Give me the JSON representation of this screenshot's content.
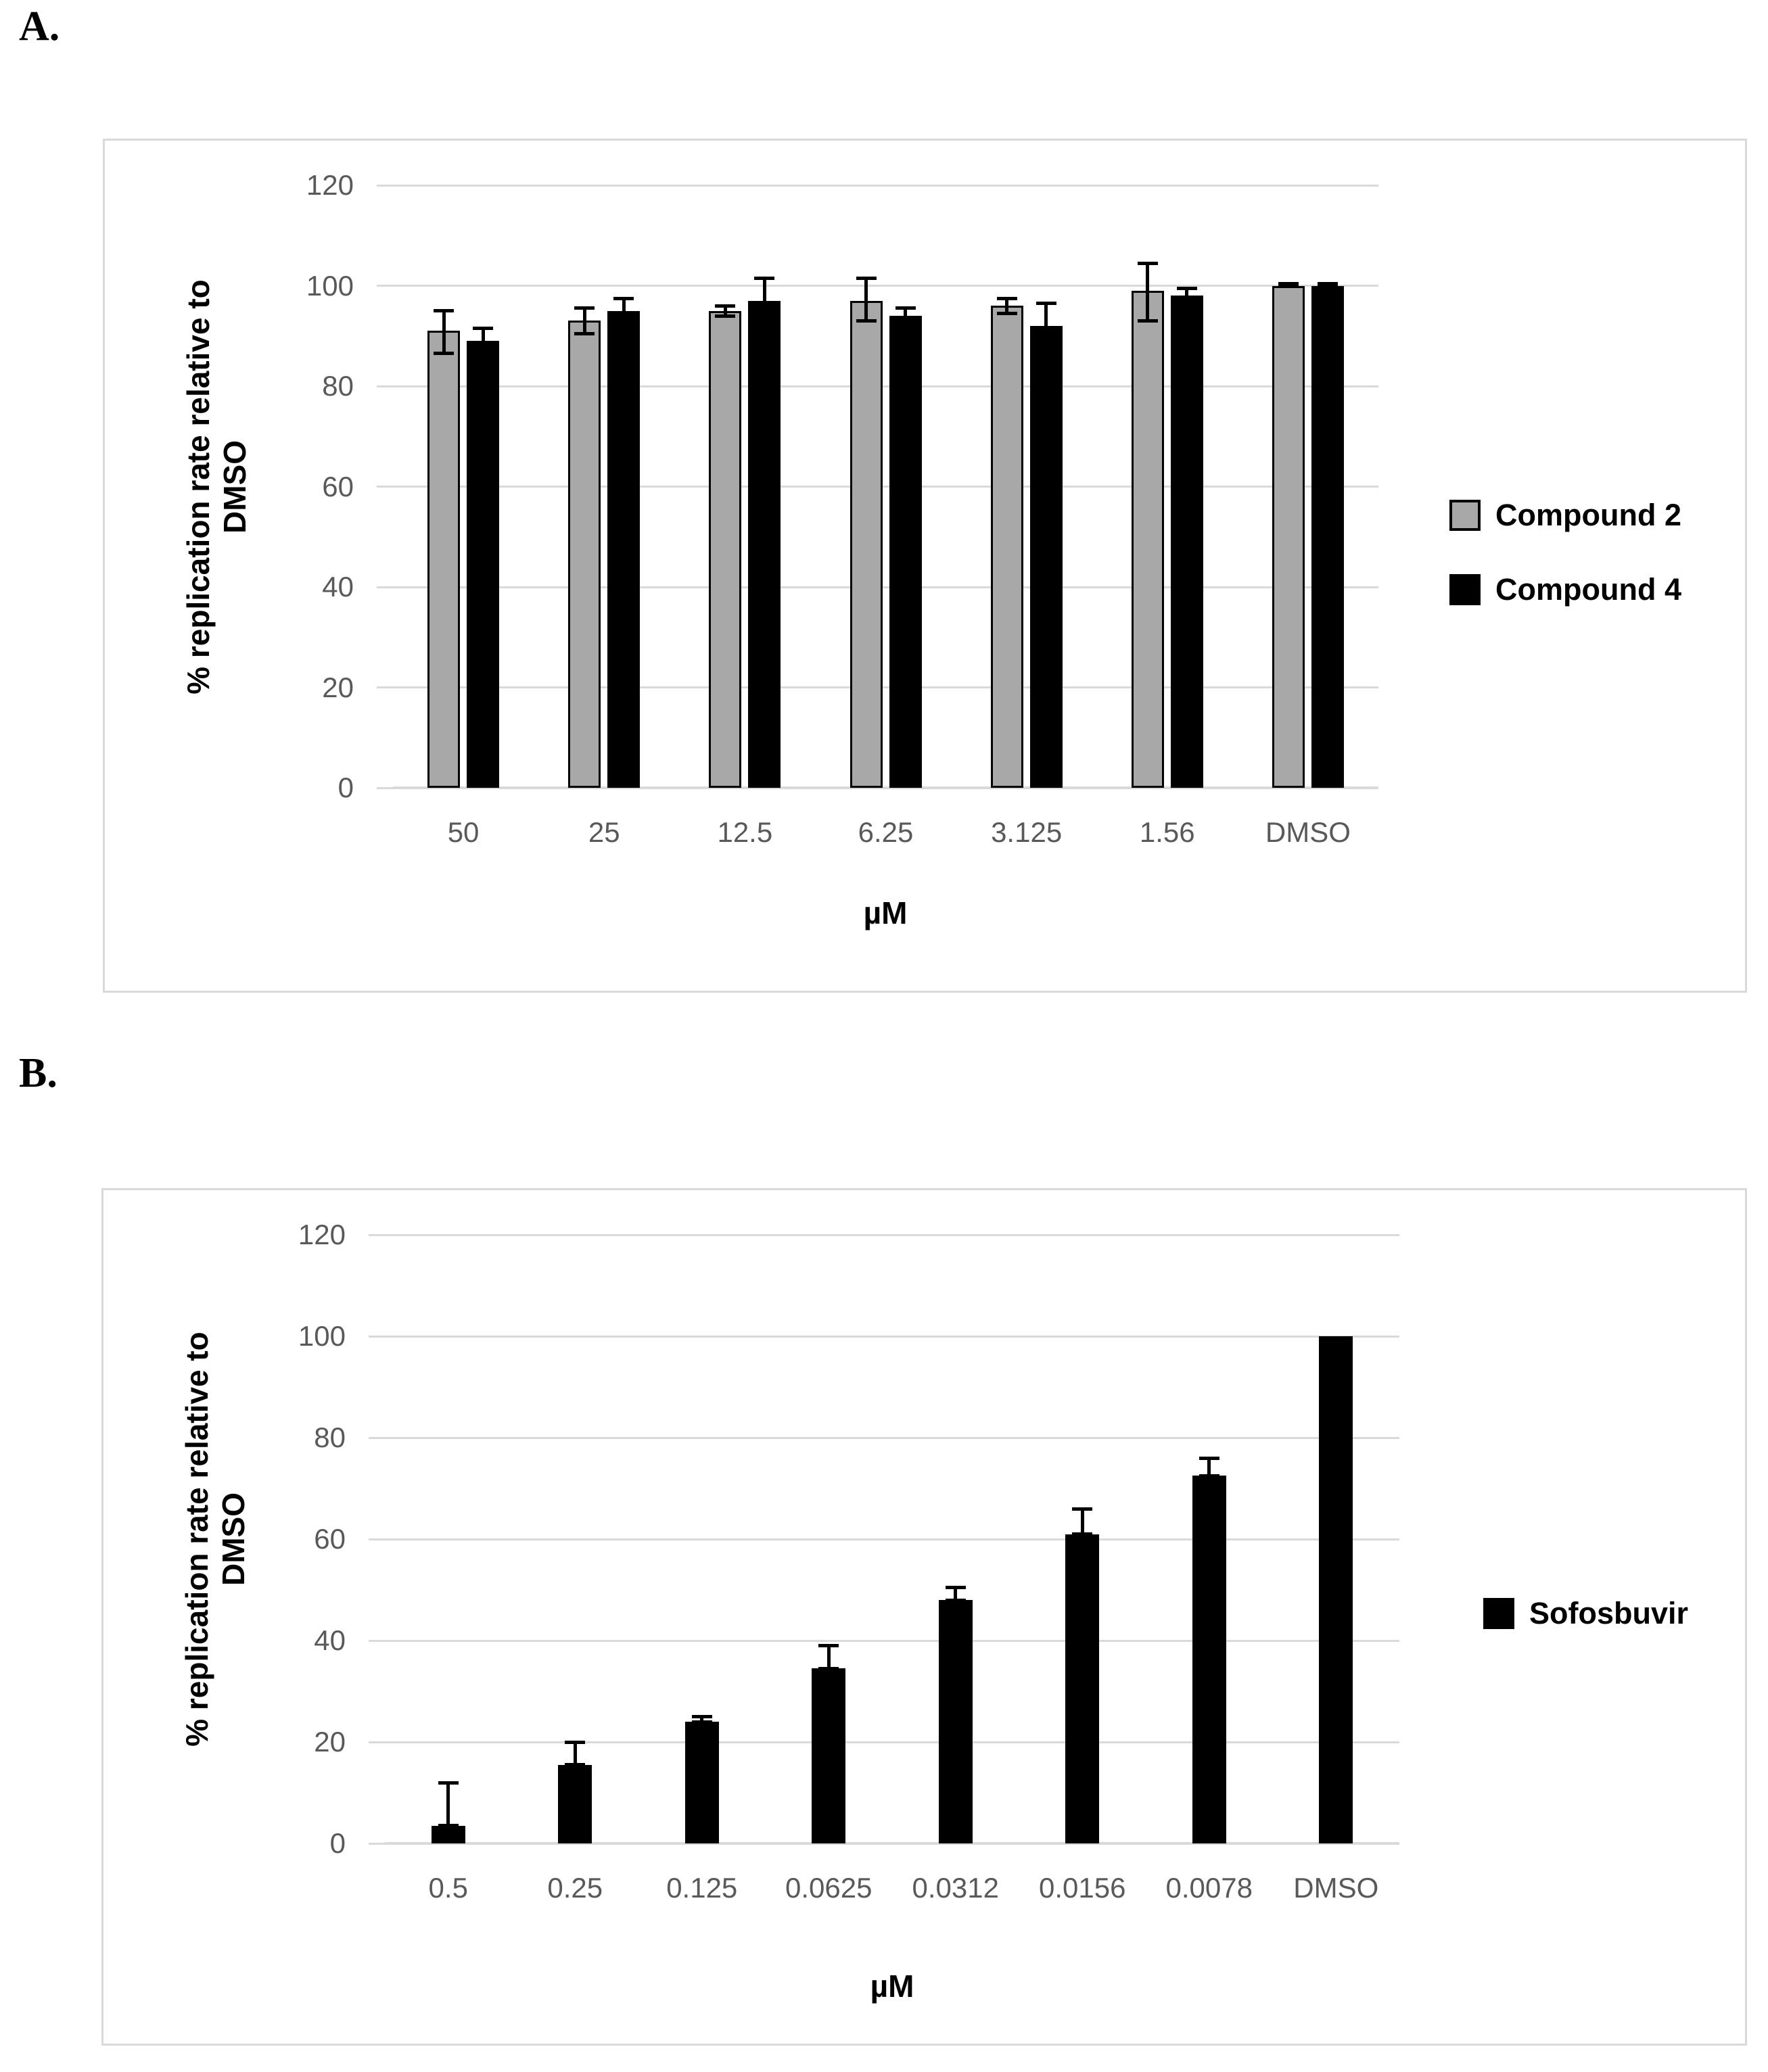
{
  "page": {
    "label_a": "A.",
    "label_b": "B."
  },
  "colors": {
    "axis_text": "#595959",
    "gridline": "#d9d9d9",
    "panel_border": "#d9d9d9",
    "gray_bar": "#a8a8a8",
    "black_bar": "#000000"
  },
  "chart_data": [
    {
      "id": "panel-a",
      "type": "bar",
      "title": "",
      "categories": [
        "50",
        "25",
        "12.5",
        "6.25",
        "3.125",
        "1.56",
        "DMSO"
      ],
      "series": [
        {
          "name": "Compound 2",
          "color": "#a8a8a8",
          "border": "#000000",
          "values": [
            91,
            93,
            95,
            97,
            96,
            99,
            100
          ],
          "errors": [
            4,
            2.5,
            1,
            4.5,
            1.5,
            5.5,
            0.4
          ],
          "errors_down": [
            4.5,
            2.5,
            1,
            4,
            1.5,
            6,
            0
          ]
        },
        {
          "name": "Compound 4",
          "color": "#000000",
          "border": "#000000",
          "values": [
            89,
            95,
            97,
            94,
            92,
            98,
            100
          ],
          "errors": [
            2.5,
            2.5,
            4.5,
            1.5,
            4.5,
            1.5,
            0.4
          ],
          "errors_down": [
            2.5,
            2.5,
            4.5,
            1.5,
            4.5,
            1.5,
            0
          ]
        }
      ],
      "xlabel": "µM",
      "ylabel": "% replication rate relative to DMSO",
      "ylabel_lines": [
        "% replication rate relative to",
        "DMSO"
      ],
      "ylim": [
        0,
        120
      ],
      "yticks": [
        0,
        20,
        40,
        60,
        80,
        100,
        120
      ],
      "grid": true,
      "legend_position": "right"
    },
    {
      "id": "panel-b",
      "type": "bar",
      "title": "",
      "categories": [
        "0.5",
        "0.25",
        "0.125",
        "0.0625",
        "0.0312",
        "0.0156",
        "0.0078",
        "DMSO"
      ],
      "series": [
        {
          "name": "Sofosbuvir",
          "color": "#000000",
          "border": "#000000",
          "values": [
            3.5,
            15.5,
            24,
            34.5,
            48,
            61,
            72.5,
            100
          ],
          "errors": [
            8.5,
            4.5,
            1,
            4.5,
            2.5,
            5,
            3.5,
            0
          ],
          "errors_down": [
            0,
            0,
            0,
            0,
            0,
            0,
            0,
            0
          ]
        }
      ],
      "xlabel": "µM",
      "ylabel": "% replication rate relative to DMSO",
      "ylabel_lines": [
        "% replication rate relative to",
        "DMSO"
      ],
      "ylim": [
        0,
        120
      ],
      "yticks": [
        0,
        20,
        40,
        60,
        80,
        100,
        120
      ],
      "grid": true,
      "legend_position": "right"
    }
  ]
}
